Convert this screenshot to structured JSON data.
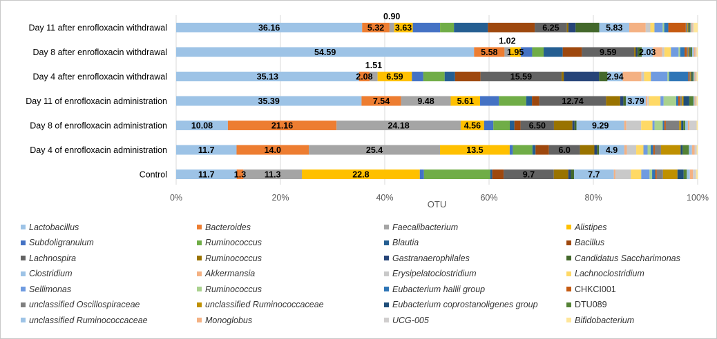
{
  "chart_data": {
    "type": "bar",
    "orientation": "horizontal",
    "stacked": true,
    "percent": true,
    "xlabel": "OTU",
    "xlim": [
      0,
      100
    ],
    "x_ticks": [
      "0%",
      "20%",
      "40%",
      "60%",
      "80%",
      "100%"
    ],
    "grid": true,
    "legend_position": "bottom",
    "categories": [
      "Day 11 after enrofloxacin withdrawal",
      "Day 8 after enrofloxacin withdrawal",
      "Day 4 after enrofloxacin withdrawal",
      "Day 11 of enrofloxacin administration",
      "Day 8 of enrofloxacin administration",
      "Day 4 of enrofloxacin administration",
      "Control"
    ],
    "series": [
      {
        "name": "Lactobacillus",
        "italic": true,
        "color": "#9dc3e6",
        "values": [
          36.16,
          54.59,
          35.13,
          35.39,
          10.08,
          11.7,
          11.7
        ]
      },
      {
        "name": "Bacteroides",
        "italic": true,
        "color": "#ed7d31",
        "values": [
          5.32,
          5.58,
          2.08,
          7.54,
          21.16,
          14.0,
          1.3
        ]
      },
      {
        "name": "Faecalibacterium",
        "italic": true,
        "color": "#a5a5a5",
        "values": [
          0.9,
          1.02,
          1.51,
          9.48,
          24.18,
          25.4,
          11.3
        ]
      },
      {
        "name": "Alistipes",
        "italic": true,
        "color": "#ffc000",
        "values": [
          3.63,
          1.95,
          6.59,
          5.61,
          4.56,
          13.5,
          22.8
        ]
      },
      {
        "name": "Subdoligranulum",
        "italic": true,
        "color": "#4472c4",
        "values": [
          5.3,
          2.1,
          2.2,
          3.6,
          1.8,
          0.6,
          0.8
        ]
      },
      {
        "name": "Ruminococcus",
        "italic": true,
        "color": "#70ad47",
        "values": [
          2.7,
          2.1,
          4.1,
          5.2,
          3.2,
          3.8,
          12.8
        ]
      },
      {
        "name": "Blautia",
        "italic": true,
        "color": "#255e91",
        "values": [
          6.6,
          3.5,
          2.0,
          1.1,
          0.9,
          0.6,
          0.4
        ]
      },
      {
        "name": "Bacillus",
        "italic": true,
        "color": "#9e480e",
        "values": [
          9.1,
          3.5,
          4.9,
          1.4,
          1.2,
          2.6,
          2.2
        ]
      },
      {
        "name": "Lachnospira",
        "italic": true,
        "color": "#636363",
        "values": [
          6.25,
          9.59,
          15.59,
          12.74,
          6.5,
          6.0,
          9.7
        ]
      },
      {
        "name": "Ruminococcus",
        "italic": true,
        "color": "#997300",
        "values": [
          0.3,
          0.3,
          0.4,
          2.7,
          3.6,
          2.8,
          2.8
        ]
      },
      {
        "name": "Gastranaerophilales",
        "italic": true,
        "color": "#264478",
        "values": [
          1.4,
          0.3,
          6.8,
          0.6,
          0.4,
          0.5,
          0.5
        ]
      },
      {
        "name": "Candidatus Saccharimonas",
        "italic": true,
        "color": "#43682b",
        "values": [
          4.6,
          0.8,
          1.6,
          0.5,
          0.4,
          0.4,
          0.6
        ]
      },
      {
        "name": "Clostridium",
        "italic": true,
        "color": "#9dc3e6",
        "values": [
          5.83,
          2.03,
          2.94,
          3.79,
          9.29,
          4.9,
          7.7
        ]
      },
      {
        "name": "Akkermansia",
        "italic": true,
        "color": "#f4b183",
        "values": [
          3.2,
          1.7,
          3.6,
          0.3,
          0.4,
          0.5,
          0.3
        ]
      },
      {
        "name": "Erysipelatoclostridium",
        "italic": true,
        "color": "#c9c9c9",
        "values": [
          0.9,
          0.4,
          0.5,
          0.3,
          2.9,
          1.8,
          3.0
        ]
      },
      {
        "name": "Lachnoclostridium",
        "italic": true,
        "color": "#ffd966",
        "values": [
          0.8,
          1.2,
          1.3,
          2.2,
          2.2,
          1.4,
          2.0
        ]
      },
      {
        "name": "Sellimonas",
        "italic": true,
        "color": "#6f9be0",
        "values": [
          1.6,
          1.4,
          3.2,
          0.6,
          0.4,
          0.8,
          1.6
        ]
      },
      {
        "name": "Ruminococcus",
        "italic": true,
        "color": "#a9d18e",
        "values": [
          0.3,
          0.3,
          0.3,
          2.4,
          1.6,
          0.6,
          0.5
        ]
      },
      {
        "name": "Eubacterium hallii group",
        "italic": true,
        "color": "#2e75b6",
        "values": [
          0.8,
          0.8,
          3.7,
          0.4,
          0.3,
          0.5,
          0.6
        ]
      },
      {
        "name": "CHKCI001",
        "italic": false,
        "color": "#c55a11",
        "values": [
          3.4,
          0.4,
          0.2,
          0.3,
          0.3,
          0.3,
          0.3
        ]
      },
      {
        "name": "unclassified Oscillospiraceae",
        "italic": true,
        "color": "#7f7f7f",
        "values": [
          0.3,
          0.3,
          0.2,
          0.4,
          2.6,
          1.2,
          1.2
        ]
      },
      {
        "name": "unclassified Ruminococcaceae",
        "italic": true,
        "color": "#bf9000",
        "values": [
          0.2,
          0.2,
          0.2,
          0.3,
          0.4,
          3.8,
          2.8
        ]
      },
      {
        "name": "Eubacterium coprostanoligenes group",
        "italic": true,
        "color": "#1f4e79",
        "values": [
          0.2,
          0.2,
          0.2,
          1.1,
          0.4,
          0.4,
          1.2
        ]
      },
      {
        "name": "DTU089",
        "italic": false,
        "color": "#548235",
        "values": [
          0.2,
          0.3,
          0.2,
          0.8,
          0.4,
          1.2,
          0.6
        ]
      },
      {
        "name": "unclassified  Ruminococcaceae",
        "italic": true,
        "color": "#9dc3e6",
        "values": [
          0.2,
          0.3,
          0.2,
          0.2,
          0.5,
          0.6,
          0.6
        ]
      },
      {
        "name": "Monoglobus",
        "italic": true,
        "color": "#f4b183",
        "values": [
          0.2,
          0.3,
          0.2,
          0.2,
          0.3,
          0.5,
          0.6
        ]
      },
      {
        "name": "UCG-005",
        "italic": true,
        "color": "#d0cece",
        "values": [
          0.2,
          0.2,
          0.2,
          0.2,
          1.4,
          0.4,
          0.6
        ]
      },
      {
        "name": "Bifidobacterium",
        "italic": true,
        "color": "#ffe699",
        "values": [
          0.8,
          0.2,
          0.2,
          0.2,
          0.2,
          0.2,
          0.3
        ]
      }
    ],
    "data_labels": [
      [
        {
          "series": 0,
          "text": "36.16"
        },
        {
          "series": 1,
          "text": "5.32"
        },
        {
          "series": 2,
          "text": "0.90",
          "above": true
        },
        {
          "series": 3,
          "text": "3.63"
        },
        {
          "series": 8,
          "text": "6.25"
        },
        {
          "series": 12,
          "text": "5.83"
        }
      ],
      [
        {
          "series": 0,
          "text": "54.59"
        },
        {
          "series": 1,
          "text": "5.58"
        },
        {
          "series": 2,
          "text": "1.02",
          "above": true
        },
        {
          "series": 3,
          "text": "1.95"
        },
        {
          "series": 8,
          "text": "9.59"
        },
        {
          "series": 12,
          "text": "2.03"
        }
      ],
      [
        {
          "series": 0,
          "text": "35.13"
        },
        {
          "series": 1,
          "text": "2.08"
        },
        {
          "series": 2,
          "text": "1.51",
          "above": true
        },
        {
          "series": 3,
          "text": "6.59"
        },
        {
          "series": 8,
          "text": "15.59"
        },
        {
          "series": 12,
          "text": "2.94"
        }
      ],
      [
        {
          "series": 0,
          "text": "35.39"
        },
        {
          "series": 1,
          "text": "7.54"
        },
        {
          "series": 2,
          "text": "9.48"
        },
        {
          "series": 3,
          "text": "5.61"
        },
        {
          "series": 8,
          "text": "12.74"
        },
        {
          "series": 12,
          "text": "3.79"
        }
      ],
      [
        {
          "series": 0,
          "text": "10.08"
        },
        {
          "series": 1,
          "text": "21.16"
        },
        {
          "series": 2,
          "text": "24.18"
        },
        {
          "series": 3,
          "text": "4.56"
        },
        {
          "series": 8,
          "text": "6.50"
        },
        {
          "series": 12,
          "text": "9.29"
        }
      ],
      [
        {
          "series": 0,
          "text": "11.7"
        },
        {
          "series": 1,
          "text": "14.0"
        },
        {
          "series": 2,
          "text": "25.4"
        },
        {
          "series": 3,
          "text": "13.5"
        },
        {
          "series": 8,
          "text": "6.0"
        },
        {
          "series": 12,
          "text": "4.9"
        }
      ],
      [
        {
          "series": 0,
          "text": "11.7"
        },
        {
          "series": 1,
          "text": "1.3"
        },
        {
          "series": 2,
          "text": "11.3"
        },
        {
          "series": 3,
          "text": "22.8"
        },
        {
          "series": 8,
          "text": "9.7"
        },
        {
          "series": 12,
          "text": "7.7"
        }
      ]
    ]
  }
}
